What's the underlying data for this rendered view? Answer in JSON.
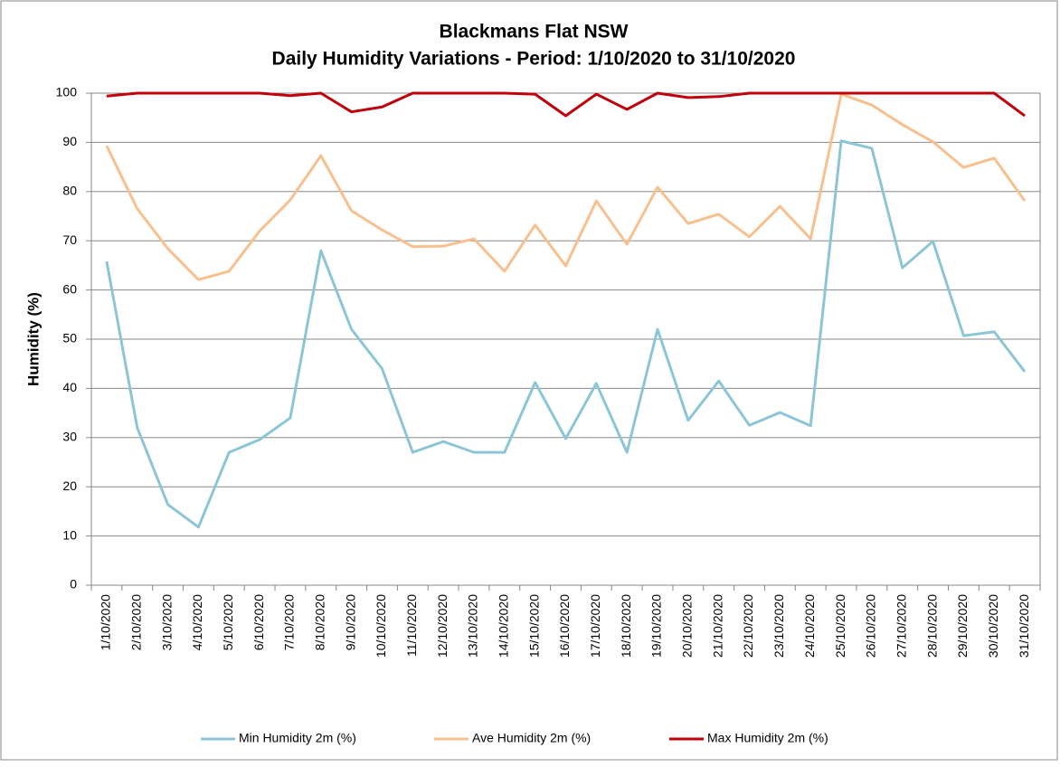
{
  "chart_data": {
    "type": "line",
    "title": "Blackmans Flat NSW",
    "subtitle": "Daily Humidity Variations - Period: 1/10/2020 to 31/10/2020",
    "y_label": "Humidity (%)",
    "categories": [
      "1/10/2020",
      "2/10/2020",
      "3/10/2020",
      "4/10/2020",
      "5/10/2020",
      "6/10/2020",
      "7/10/2020",
      "8/10/2020",
      "9/10/2020",
      "10/10/2020",
      "11/10/2020",
      "12/10/2020",
      "13/10/2020",
      "14/10/2020",
      "15/10/2020",
      "16/10/2020",
      "17/10/2020",
      "18/10/2020",
      "19/10/2020",
      "20/10/2020",
      "21/10/2020",
      "22/10/2020",
      "23/10/2020",
      "24/10/2020",
      "25/10/2020",
      "26/10/2020",
      "27/10/2020",
      "28/10/2020",
      "29/10/2020",
      "30/10/2020",
      "31/10/2020"
    ],
    "series": [
      {
        "name": "Min Humidity 2m (%)",
        "color": "#8cc6d6",
        "values": [
          65.8,
          32,
          16.4,
          11.8,
          27,
          29.6,
          34,
          68,
          52,
          44,
          27,
          29.2,
          27,
          27,
          41.2,
          29.8,
          41,
          27,
          52,
          33.5,
          41.5,
          32.5,
          35.1,
          32.4,
          90.3,
          88.8,
          64.5,
          69.9,
          50.7,
          51.5,
          43.4
        ]
      },
      {
        "name": "Ave Humidity 2m (%)",
        "color": "#f8c08e",
        "values": [
          89.3,
          76.5,
          68.4,
          62.1,
          63.8,
          72,
          78.3,
          87.3,
          76.1,
          72.2,
          68.8,
          68.9,
          70.4,
          63.8,
          73.2,
          64.9,
          78.1,
          69.3,
          80.9,
          73.5,
          75.4,
          70.8,
          77,
          70.4,
          99.8,
          97.6,
          93.6,
          90.1,
          84.9,
          86.8,
          78.1
        ]
      },
      {
        "name": "Max Humidity 2m (%)",
        "color": "#c0000a",
        "values": [
          99.4,
          100,
          100,
          100,
          100,
          100,
          99.5,
          100,
          96.2,
          97.2,
          100,
          100,
          100,
          100,
          99.8,
          95.4,
          99.8,
          96.7,
          100,
          99.1,
          99.3,
          100,
          100,
          100,
          100,
          100,
          100,
          100,
          100,
          100,
          95.4
        ]
      }
    ],
    "ylim": [
      0,
      100
    ],
    "yticks": [
      0,
      10,
      20,
      30,
      40,
      50,
      60,
      70,
      80,
      90,
      100
    ],
    "grid": true
  }
}
